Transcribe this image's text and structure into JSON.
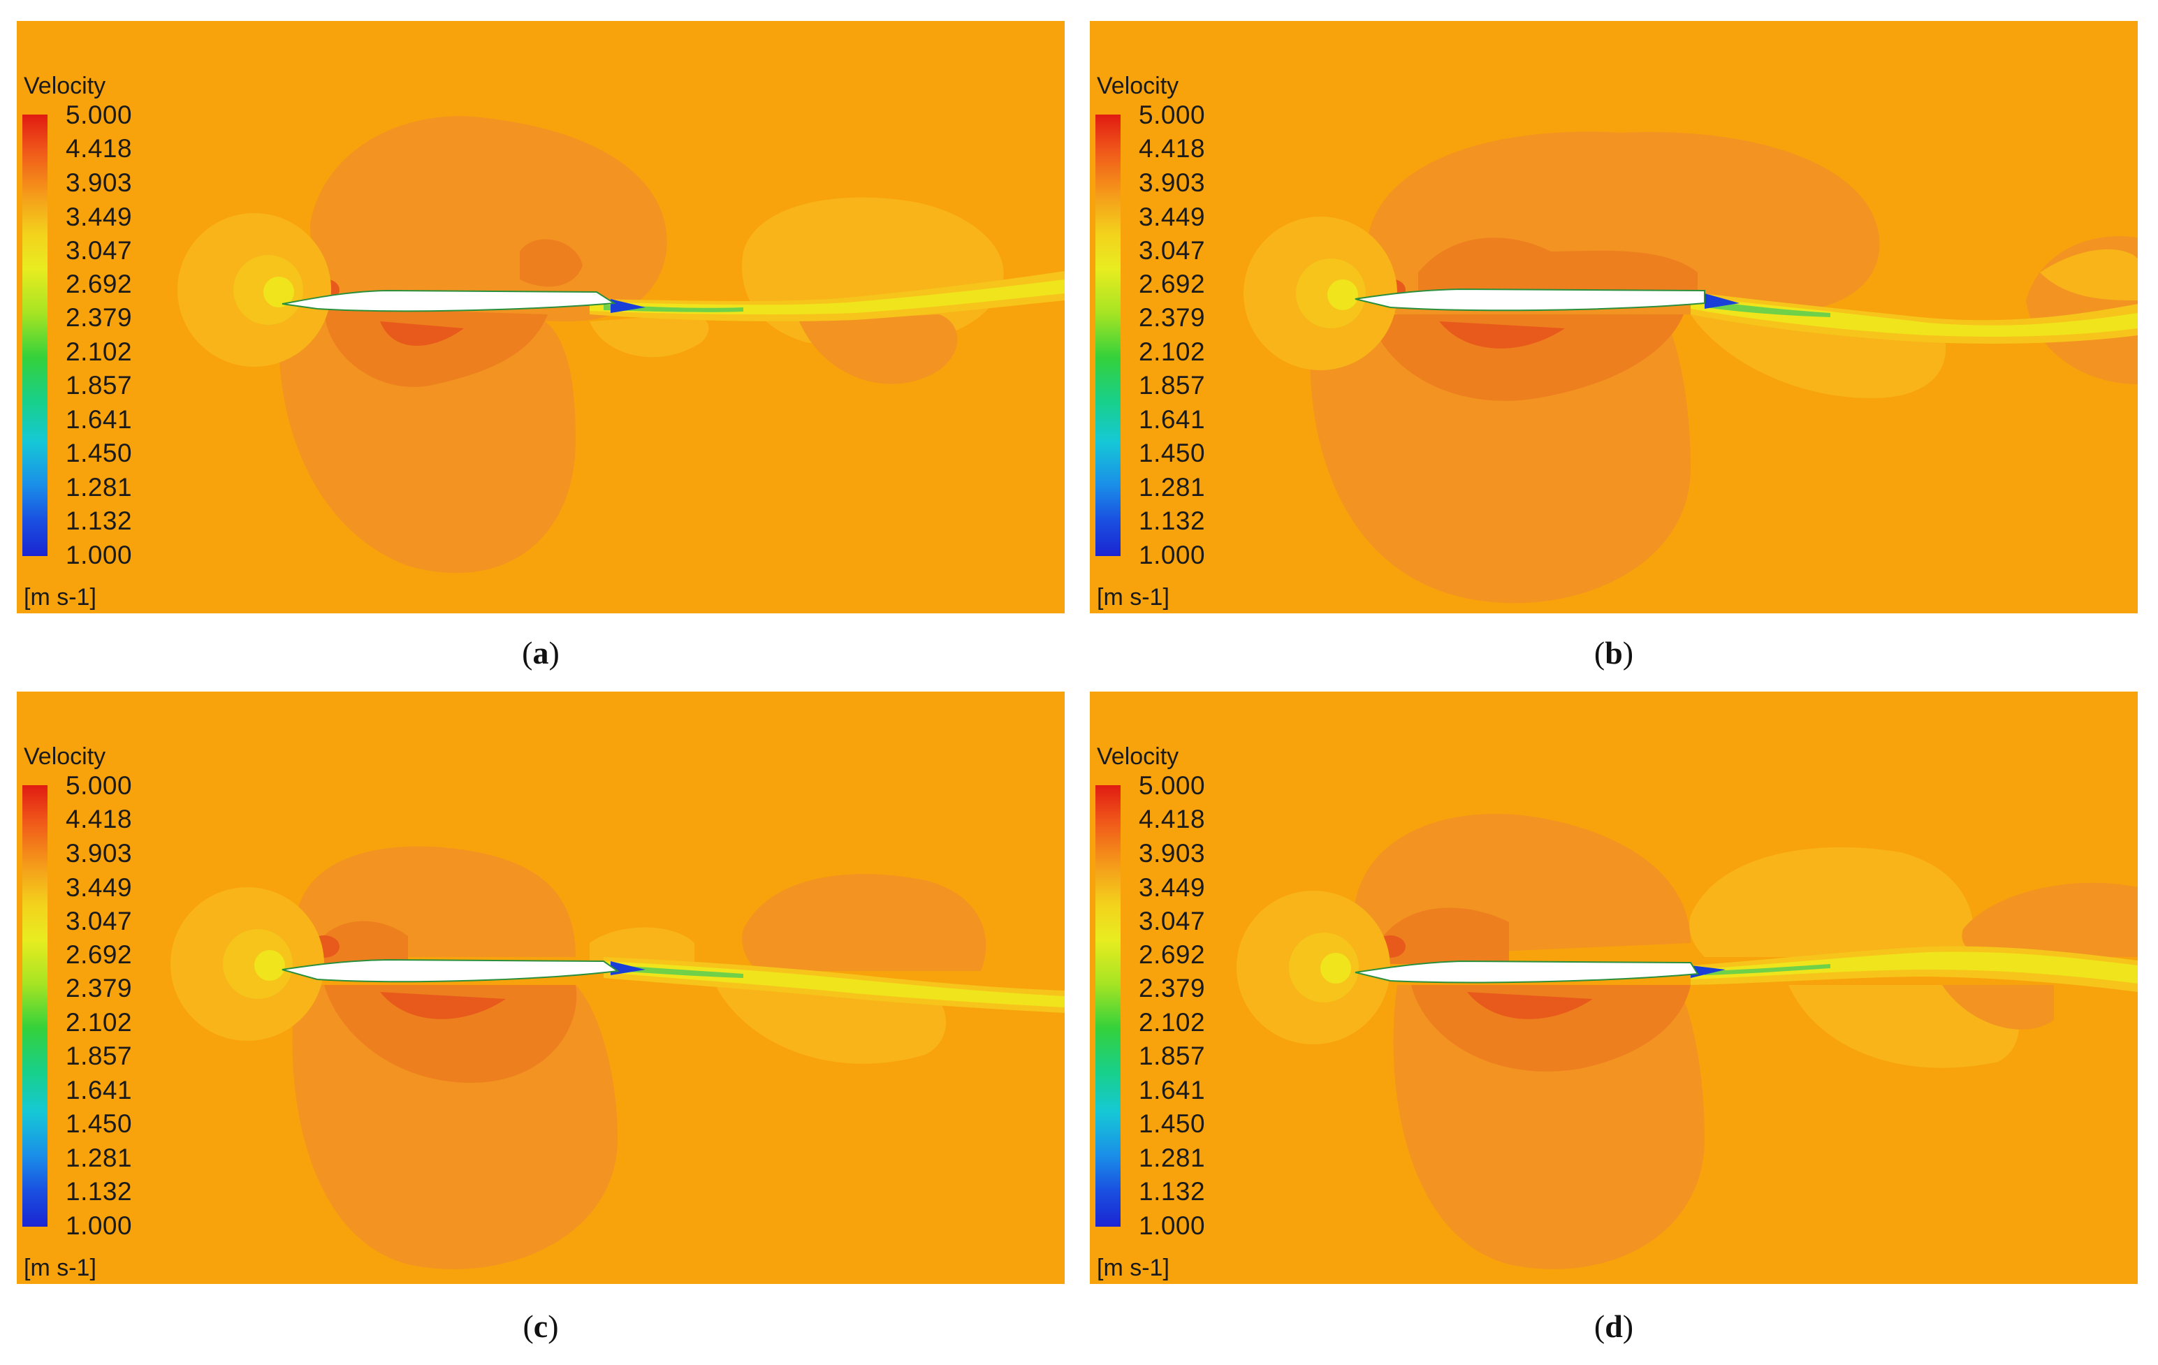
{
  "legend": {
    "title": "Velocity",
    "ticks": [
      "5.000",
      "4.418",
      "3.903",
      "3.449",
      "3.047",
      "2.692",
      "2.379",
      "2.102",
      "1.857",
      "1.641",
      "1.450",
      "1.281",
      "1.132",
      "1.000"
    ],
    "unit": "[m s-1]"
  },
  "panels": [
    {
      "letter": "a"
    },
    {
      "letter": "b"
    },
    {
      "letter": "c"
    },
    {
      "letter": "d"
    }
  ],
  "colors": {
    "background": "#f8a30c",
    "zone_dark": "#f29322",
    "zone_darker": "#ee7f1e",
    "zone_red": "#e85a1c",
    "zone_light": "#f8b418",
    "zone_yellow": "#f6c41a",
    "wake_yellow": "#f0e41c",
    "wake_green": "#6fd14a",
    "wake_blue": "#1a3fd8",
    "airfoil": "#ffffff"
  }
}
